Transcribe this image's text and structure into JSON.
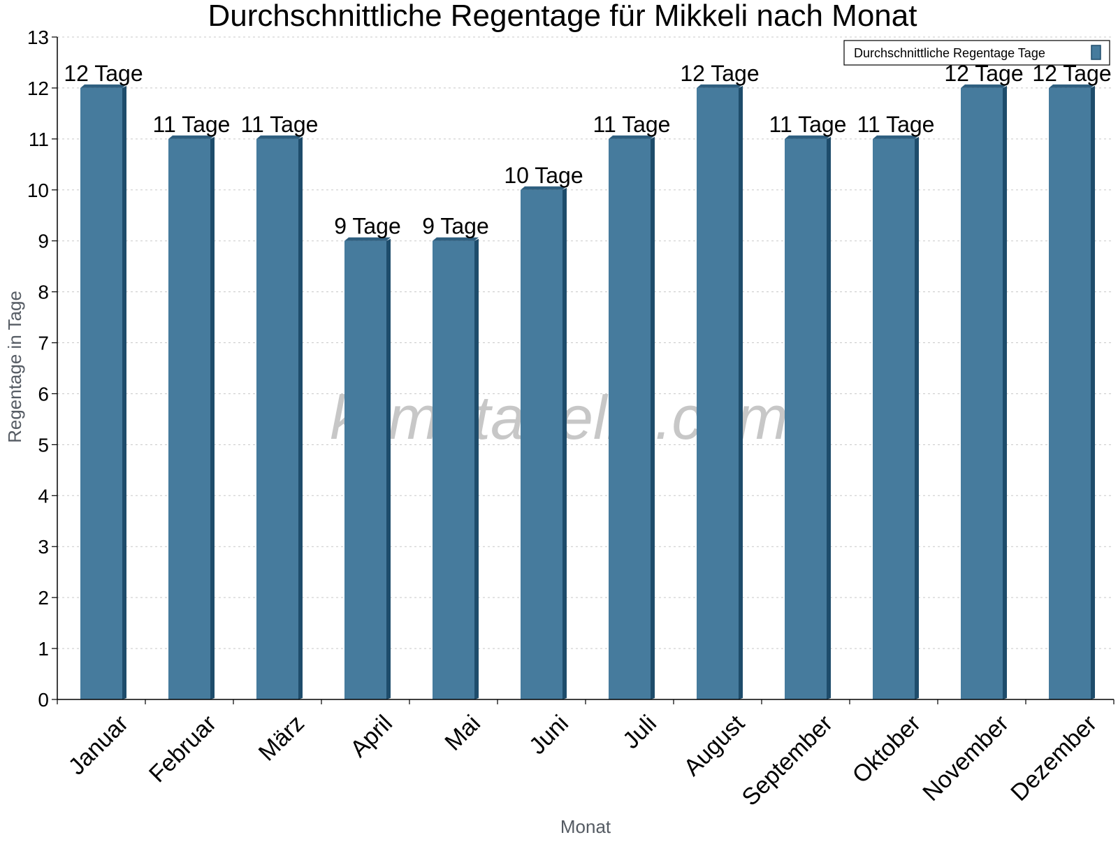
{
  "chart_data": {
    "type": "bar",
    "title": "Durchschnittliche Regentage für Mikkeli nach Monat",
    "xlabel": "Monat",
    "ylabel": "Regentage in Tage",
    "categories": [
      "Januar",
      "Februar",
      "März",
      "April",
      "Mai",
      "Juni",
      "Juli",
      "August",
      "September",
      "Oktober",
      "November",
      "Dezember"
    ],
    "series": [
      {
        "name": "Durchschnittliche Regentage Tage",
        "values": [
          12,
          11,
          11,
          9,
          9,
          10,
          11,
          12,
          11,
          11,
          12,
          12
        ],
        "labels": [
          "12 Tage",
          "11 Tage",
          "11 Tage",
          "9 Tage",
          "9 Tage",
          "10 Tage",
          "11 Tage",
          "12 Tage",
          "11 Tage",
          "11 Tage",
          "12 Tage",
          "12 Tage"
        ]
      }
    ],
    "ylim": [
      0,
      13
    ],
    "yticks": [
      0,
      1,
      2,
      3,
      4,
      5,
      6,
      7,
      8,
      9,
      10,
      11,
      12,
      13
    ],
    "grid": true,
    "legend": "top-right",
    "watermark": "klimatabelle.com",
    "colors": {
      "bar": "#467b9d",
      "bar_side": "#1e4c6b",
      "bar_top": "#2e5f80",
      "grid": "#c8c8c8",
      "axis": "#000000"
    }
  }
}
